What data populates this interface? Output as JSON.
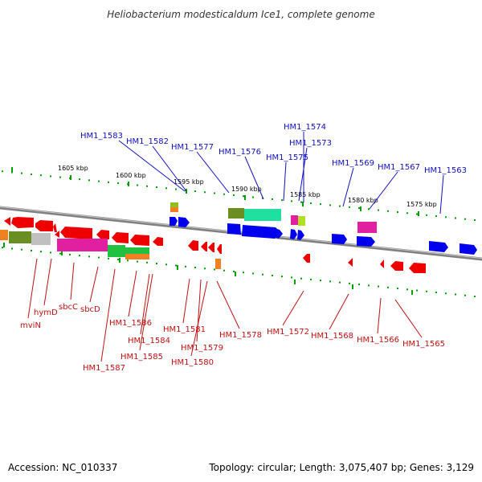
{
  "title": "Heliobacterium modesticaldum Ice1, complete genome",
  "footer": {
    "accession": "Accession: NC_010337",
    "info": "Topology: circular; Length: 3,075,407 bp; Genes: 3,129"
  },
  "kbp_labels": [
    "1605 kbp",
    "1600 kbp",
    "1595 kbp",
    "1590 kbp",
    "1585 kbp",
    "1580 kbp",
    "1575 kbp"
  ],
  "top_genes": [
    "HM1_1583",
    "HM1_1582",
    "HM1_1577",
    "HM1_1576",
    "HM1_1574",
    "HM1_1575",
    "HM1_1573",
    "HM1_1569",
    "HM1_1567",
    "HM1_1563"
  ],
  "bottom_genes": [
    "mviN",
    "hymD",
    "sbcC",
    "sbcD",
    "HM1_1587",
    "HM1_1586",
    "HM1_1584",
    "HM1_1585",
    "HM1_1581",
    "HM1_1580",
    "HM1_1579",
    "HM1_1578",
    "HM1_1572",
    "HM1_1568",
    "HM1_1566",
    "HM1_1565"
  ],
  "colors": {
    "forward_strand": "#0000ee",
    "reverse_strand": "#ee0000",
    "tick": "#00a000",
    "backbone": "#808080",
    "top_label": "#1010c0",
    "bottom_label": "#c01010"
  }
}
